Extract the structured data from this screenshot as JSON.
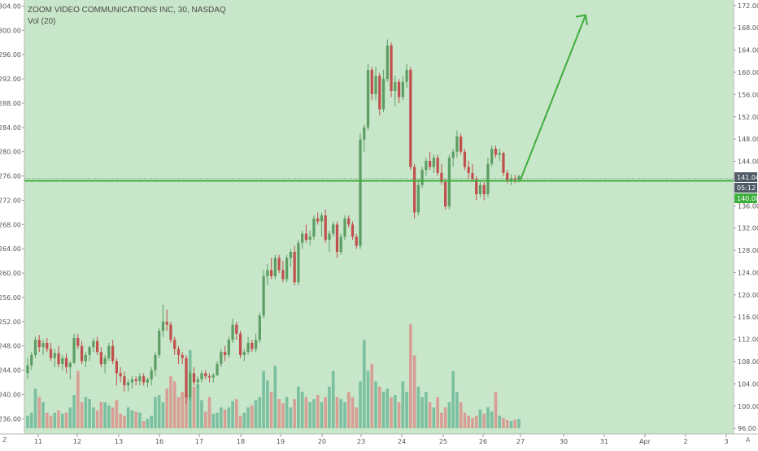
{
  "header": {
    "symbol_line": "ZOOM VIDEO COMMUNICATIONS INC, 30, NASDAQ",
    "volume_label": "Vol (20)"
  },
  "colors": {
    "background": "#c8e6c9",
    "up_candle": "#5d9e64",
    "down_candle": "#c0504d",
    "vol_up": "#6cb89a",
    "vol_down": "#d9928c",
    "annotation": "#3cae3c",
    "price_tag_grey": "#4f5b66"
  },
  "chart_data": {
    "type": "candlestick",
    "title": "ZOOM VIDEO COMMUNICATIONS INC, 30, NASDAQ",
    "interval": "30",
    "exchange": "NASDAQ",
    "left_axis": {
      "ticks": [
        "304.00",
        "300.00",
        "296.00",
        "292.00",
        "288.00",
        "284.00",
        "280.00",
        "276.00",
        "272.00",
        "268.00",
        "264.00",
        "260.00",
        "256.00",
        "252.00",
        "248.00",
        "244.00",
        "240.00",
        "236.00"
      ],
      "range": [
        233.5,
        305
      ]
    },
    "right_axis": {
      "ticks": [
        "172.00",
        "168.00",
        "164.00",
        "160.00",
        "156.00",
        "152.00",
        "148.00",
        "144.00",
        "136.00",
        "132.00",
        "128.00",
        "124.00",
        "120.00",
        "116.00",
        "112.00",
        "108.00",
        "104.00",
        "100.00",
        "96.00"
      ],
      "range": [
        95,
        173
      ],
      "last_price_label": "141.04",
      "countdown_label": "05:12",
      "level_label": "140.00"
    },
    "x_axis": {
      "ticks": [
        "11",
        "12",
        "13",
        "16",
        "17",
        "18",
        "19",
        "20",
        "23",
        "24",
        "25",
        "26",
        "27",
        "30",
        "31",
        "Apr",
        "2",
        "3"
      ],
      "corner_left": "Z",
      "corner_right": "A"
    },
    "candles": [
      {
        "o": 243.5,
        "h": 246,
        "l": 242.5,
        "c": 244.8
      },
      {
        "o": 244.8,
        "h": 247,
        "l": 244,
        "c": 246.5
      },
      {
        "o": 246.5,
        "h": 249.5,
        "l": 246,
        "c": 249
      },
      {
        "o": 249,
        "h": 249.8,
        "l": 247,
        "c": 247.8
      },
      {
        "o": 247.8,
        "h": 249,
        "l": 246.5,
        "c": 248.5
      },
      {
        "o": 248.5,
        "h": 249.3,
        "l": 247,
        "c": 247.5
      },
      {
        "o": 247.5,
        "h": 248.5,
        "l": 245.5,
        "c": 246
      },
      {
        "o": 246,
        "h": 247.5,
        "l": 244.5,
        "c": 246.8
      },
      {
        "o": 246.8,
        "h": 248,
        "l": 244.5,
        "c": 245
      },
      {
        "o": 245,
        "h": 246.5,
        "l": 244,
        "c": 246
      },
      {
        "o": 246,
        "h": 246.8,
        "l": 243.5,
        "c": 244.5
      },
      {
        "o": 244.5,
        "h": 245.5,
        "l": 242.5,
        "c": 245.2
      },
      {
        "o": 245.2,
        "h": 250,
        "l": 245,
        "c": 249.3
      },
      {
        "o": 249.3,
        "h": 250,
        "l": 247.5,
        "c": 248
      },
      {
        "o": 248,
        "h": 248.8,
        "l": 245,
        "c": 245.5
      },
      {
        "o": 245.5,
        "h": 247,
        "l": 244.5,
        "c": 246.5
      },
      {
        "o": 246.5,
        "h": 248,
        "l": 245.5,
        "c": 247.8
      },
      {
        "o": 247.8,
        "h": 249.3,
        "l": 247,
        "c": 248.8
      },
      {
        "o": 248.8,
        "h": 249.5,
        "l": 246.5,
        "c": 247
      },
      {
        "o": 247,
        "h": 247.8,
        "l": 244.5,
        "c": 245
      },
      {
        "o": 245,
        "h": 246.5,
        "l": 243.5,
        "c": 246
      },
      {
        "o": 246,
        "h": 248.5,
        "l": 245.5,
        "c": 248
      },
      {
        "o": 248,
        "h": 249,
        "l": 245,
        "c": 245.5
      },
      {
        "o": 245.5,
        "h": 246,
        "l": 241.5,
        "c": 243.5
      },
      {
        "o": 243.5,
        "h": 244.5,
        "l": 242,
        "c": 243
      },
      {
        "o": 243,
        "h": 243.8,
        "l": 240.5,
        "c": 241.5
      },
      {
        "o": 241.5,
        "h": 242.5,
        "l": 240.5,
        "c": 242
      },
      {
        "o": 242,
        "h": 243,
        "l": 241,
        "c": 242.5
      },
      {
        "o": 242.5,
        "h": 243,
        "l": 241.5,
        "c": 242.2
      },
      {
        "o": 242.2,
        "h": 243.5,
        "l": 241.5,
        "c": 243
      },
      {
        "o": 243,
        "h": 243.5,
        "l": 241.5,
        "c": 242
      },
      {
        "o": 242,
        "h": 242.8,
        "l": 241.2,
        "c": 242.5
      },
      {
        "o": 242.5,
        "h": 244.5,
        "l": 241.5,
        "c": 244
      },
      {
        "o": 244,
        "h": 247,
        "l": 243,
        "c": 246.5
      },
      {
        "o": 246.5,
        "h": 251,
        "l": 246,
        "c": 250.5
      },
      {
        "o": 250.5,
        "h": 254.8,
        "l": 249.5,
        "c": 252
      },
      {
        "o": 252,
        "h": 254,
        "l": 250.5,
        "c": 251.5
      },
      {
        "o": 251.5,
        "h": 252,
        "l": 248.5,
        "c": 249
      },
      {
        "o": 249,
        "h": 249.5,
        "l": 246.5,
        "c": 247.5
      },
      {
        "o": 247.5,
        "h": 248,
        "l": 245,
        "c": 246.5
      },
      {
        "o": 246.5,
        "h": 247,
        "l": 245,
        "c": 246
      },
      {
        "o": 246,
        "h": 246.5,
        "l": 238.5,
        "c": 239.5
      },
      {
        "o": 239.5,
        "h": 244,
        "l": 239,
        "c": 243.5
      },
      {
        "o": 243.5,
        "h": 244.5,
        "l": 241.5,
        "c": 242
      },
      {
        "o": 242,
        "h": 243,
        "l": 241,
        "c": 242.5
      },
      {
        "o": 242.5,
        "h": 244,
        "l": 242,
        "c": 243.5
      },
      {
        "o": 243.5,
        "h": 244,
        "l": 242.5,
        "c": 243
      },
      {
        "o": 243,
        "h": 243.5,
        "l": 242,
        "c": 242.8
      },
      {
        "o": 242.8,
        "h": 243.5,
        "l": 242,
        "c": 243.2
      },
      {
        "o": 243.2,
        "h": 245.5,
        "l": 243,
        "c": 245
      },
      {
        "o": 245,
        "h": 247.5,
        "l": 244.5,
        "c": 247
      },
      {
        "o": 247,
        "h": 248,
        "l": 245.5,
        "c": 246.5
      },
      {
        "o": 246.5,
        "h": 249.5,
        "l": 246,
        "c": 249
      },
      {
        "o": 249,
        "h": 252.5,
        "l": 248.5,
        "c": 251.5
      },
      {
        "o": 251.5,
        "h": 252,
        "l": 249,
        "c": 250
      },
      {
        "o": 250,
        "h": 250.5,
        "l": 246,
        "c": 246.5
      },
      {
        "o": 246.5,
        "h": 247.5,
        "l": 245.5,
        "c": 247
      },
      {
        "o": 247,
        "h": 249.5,
        "l": 246.5,
        "c": 248.5
      },
      {
        "o": 248.5,
        "h": 249,
        "l": 247,
        "c": 247.5
      },
      {
        "o": 247.5,
        "h": 250,
        "l": 247,
        "c": 249
      },
      {
        "o": 249,
        "h": 253.5,
        "l": 248.5,
        "c": 253
      },
      {
        "o": 253,
        "h": 260.5,
        "l": 252.5,
        "c": 259.5
      },
      {
        "o": 259.5,
        "h": 261.5,
        "l": 258,
        "c": 260.5
      },
      {
        "o": 260.5,
        "h": 262.5,
        "l": 259,
        "c": 259.5
      },
      {
        "o": 259.5,
        "h": 263,
        "l": 259,
        "c": 262.5
      },
      {
        "o": 262.5,
        "h": 263,
        "l": 260,
        "c": 260.5
      },
      {
        "o": 260.5,
        "h": 262,
        "l": 258.5,
        "c": 259
      },
      {
        "o": 259,
        "h": 263,
        "l": 258.5,
        "c": 262.5
      },
      {
        "o": 262.5,
        "h": 264,
        "l": 261,
        "c": 263.5
      },
      {
        "o": 263.5,
        "h": 264.5,
        "l": 258,
        "c": 258.5
      },
      {
        "o": 258.5,
        "h": 265.5,
        "l": 258,
        "c": 265
      },
      {
        "o": 265,
        "h": 267,
        "l": 264,
        "c": 266.5
      },
      {
        "o": 266.5,
        "h": 268,
        "l": 265,
        "c": 265.5
      },
      {
        "o": 265.5,
        "h": 267,
        "l": 264.5,
        "c": 266
      },
      {
        "o": 266,
        "h": 269.5,
        "l": 265.5,
        "c": 269
      },
      {
        "o": 269,
        "h": 270,
        "l": 268,
        "c": 268.5
      },
      {
        "o": 268.5,
        "h": 270,
        "l": 266,
        "c": 269.5
      },
      {
        "o": 269.5,
        "h": 270.5,
        "l": 265,
        "c": 265.5
      },
      {
        "o": 265.5,
        "h": 267,
        "l": 263.5,
        "c": 266.5
      },
      {
        "o": 266.5,
        "h": 268.5,
        "l": 266,
        "c": 268
      },
      {
        "o": 268,
        "h": 268.5,
        "l": 262.5,
        "c": 263.5
      },
      {
        "o": 263.5,
        "h": 266.5,
        "l": 263,
        "c": 266
      },
      {
        "o": 266,
        "h": 269.5,
        "l": 265.5,
        "c": 269
      },
      {
        "o": 269,
        "h": 269.5,
        "l": 267.5,
        "c": 268
      },
      {
        "o": 268,
        "h": 268.5,
        "l": 265.5,
        "c": 266
      },
      {
        "o": 266,
        "h": 266.5,
        "l": 264,
        "c": 264.5
      },
      {
        "o": 264.5,
        "h": 283,
        "l": 264,
        "c": 282
      },
      {
        "o": 282,
        "h": 284.5,
        "l": 280,
        "c": 284
      },
      {
        "o": 284,
        "h": 294.5,
        "l": 283.5,
        "c": 293.5
      },
      {
        "o": 293.5,
        "h": 294,
        "l": 288.5,
        "c": 289.5
      },
      {
        "o": 289.5,
        "h": 294,
        "l": 288.5,
        "c": 292.5
      },
      {
        "o": 292.5,
        "h": 293,
        "l": 286,
        "c": 287
      },
      {
        "o": 287,
        "h": 293.5,
        "l": 286.5,
        "c": 292
      },
      {
        "o": 292,
        "h": 298.5,
        "l": 291.5,
        "c": 297.5
      },
      {
        "o": 297.5,
        "h": 298,
        "l": 289,
        "c": 290
      },
      {
        "o": 290,
        "h": 292.5,
        "l": 287.5,
        "c": 291.5
      },
      {
        "o": 291.5,
        "h": 292,
        "l": 288,
        "c": 289
      },
      {
        "o": 289,
        "h": 292.5,
        "l": 288.5,
        "c": 291.5
      },
      {
        "o": 291.5,
        "h": 294.5,
        "l": 290.5,
        "c": 293.5
      },
      {
        "o": 293.5,
        "h": 294,
        "l": 277,
        "c": 277.5
      },
      {
        "o": 277.5,
        "h": 278,
        "l": 269,
        "c": 270
      },
      {
        "o": 270,
        "h": 275.5,
        "l": 269.5,
        "c": 274.5
      },
      {
        "o": 274.5,
        "h": 277.5,
        "l": 274,
        "c": 277
      },
      {
        "o": 277,
        "h": 279,
        "l": 276,
        "c": 278.5
      },
      {
        "o": 278.5,
        "h": 280,
        "l": 277,
        "c": 277.5
      },
      {
        "o": 277.5,
        "h": 279.5,
        "l": 276.5,
        "c": 279
      },
      {
        "o": 279,
        "h": 279.5,
        "l": 276,
        "c": 276.5
      },
      {
        "o": 276.5,
        "h": 278,
        "l": 274.5,
        "c": 275
      },
      {
        "o": 275,
        "h": 275.5,
        "l": 270.5,
        "c": 271
      },
      {
        "o": 271,
        "h": 279.5,
        "l": 270.5,
        "c": 279
      },
      {
        "o": 279,
        "h": 280.5,
        "l": 277.5,
        "c": 280
      },
      {
        "o": 280,
        "h": 283.5,
        "l": 279,
        "c": 282.5
      },
      {
        "o": 282.5,
        "h": 283,
        "l": 279.5,
        "c": 280
      },
      {
        "o": 280,
        "h": 280.5,
        "l": 277,
        "c": 277.5
      },
      {
        "o": 277.5,
        "h": 278.5,
        "l": 275.5,
        "c": 276.5
      },
      {
        "o": 276.5,
        "h": 278,
        "l": 275,
        "c": 275.5
      },
      {
        "o": 275.5,
        "h": 276,
        "l": 272,
        "c": 273
      },
      {
        "o": 273,
        "h": 275,
        "l": 272.5,
        "c": 274.5
      },
      {
        "o": 274.5,
        "h": 275,
        "l": 272,
        "c": 273
      },
      {
        "o": 273,
        "h": 279,
        "l": 272.5,
        "c": 278
      },
      {
        "o": 278,
        "h": 281,
        "l": 277.5,
        "c": 280.5
      },
      {
        "o": 280.5,
        "h": 281,
        "l": 279,
        "c": 279.5
      },
      {
        "o": 279.5,
        "h": 280.5,
        "l": 278.5,
        "c": 279.8
      },
      {
        "o": 279.8,
        "h": 280,
        "l": 276,
        "c": 276.5
      },
      {
        "o": 276.5,
        "h": 277,
        "l": 274.8,
        "c": 275.3
      },
      {
        "o": 275.3,
        "h": 276.3,
        "l": 274.5,
        "c": 275.6
      },
      {
        "o": 275.6,
        "h": 276.2,
        "l": 274.8,
        "c": 275.4
      },
      {
        "o": 275.4,
        "h": 276.2,
        "l": 274.9,
        "c": 276
      }
    ],
    "volume_levels": [
      0.12,
      0.15,
      0.38,
      0.3,
      0.25,
      0.15,
      0.12,
      0.15,
      0.17,
      0.14,
      0.15,
      0.2,
      0.32,
      0.55,
      0.25,
      0.3,
      0.28,
      0.2,
      0.17,
      0.25,
      0.25,
      0.22,
      0.2,
      0.27,
      0.14,
      0.12,
      0.2,
      0.17,
      0.16,
      0.15,
      0.07,
      0.09,
      0.12,
      0.3,
      0.32,
      0.25,
      0.38,
      0.5,
      0.45,
      0.3,
      0.35,
      0.32,
      0.75,
      0.4,
      0.42,
      0.27,
      0.16,
      0.3,
      0.14,
      0.15,
      0.2,
      0.18,
      0.2,
      0.26,
      0.28,
      0.12,
      0.15,
      0.2,
      0.22,
      0.27,
      0.3,
      0.55,
      0.46,
      0.35,
      0.6,
      0.28,
      0.24,
      0.3,
      0.2,
      0.28,
      0.4,
      0.35,
      0.3,
      0.25,
      0.28,
      0.32,
      0.25,
      0.3,
      0.4,
      0.55,
      0.3,
      0.28,
      0.25,
      0.35,
      0.3,
      0.2,
      0.45,
      0.85,
      0.55,
      0.62,
      0.45,
      0.4,
      0.35,
      0.38,
      0.3,
      0.32,
      0.25,
      0.45,
      0.35,
      1.0,
      0.7,
      0.4,
      0.3,
      0.35,
      0.25,
      0.2,
      0.3,
      0.15,
      0.2,
      0.25,
      0.55,
      0.35,
      0.25,
      0.15,
      0.12,
      0.1,
      0.12,
      0.18,
      0.14,
      0.2,
      0.16,
      0.35,
      0.12,
      0.1,
      0.08,
      0.07,
      0.08,
      0.09
    ],
    "horizontal_level": 275.2,
    "projection_arrow": {
      "from_price": 275.4,
      "to_price": 302.5,
      "direction": "up"
    },
    "grid": false
  }
}
